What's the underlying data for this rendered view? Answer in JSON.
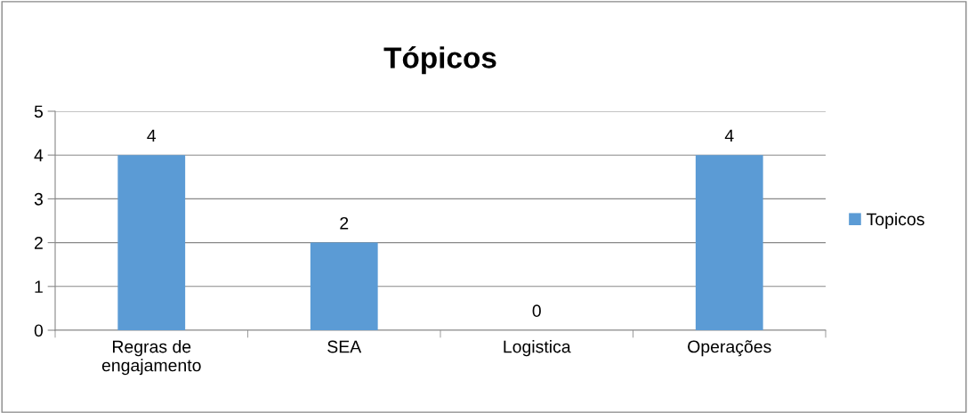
{
  "chart_data": {
    "type": "bar",
    "title": "Tópicos",
    "categories": [
      "Regras de\nengajamento",
      "SEA",
      "Logistica",
      "Operações"
    ],
    "series": [
      {
        "name": "Topicos",
        "color": "#5b9bd5",
        "values": [
          4,
          2,
          0,
          4
        ]
      }
    ],
    "ylim": [
      0,
      5
    ],
    "yticks": [
      0,
      1,
      2,
      3,
      4,
      5
    ],
    "grid": "y",
    "legend": "right",
    "data_labels": true
  }
}
